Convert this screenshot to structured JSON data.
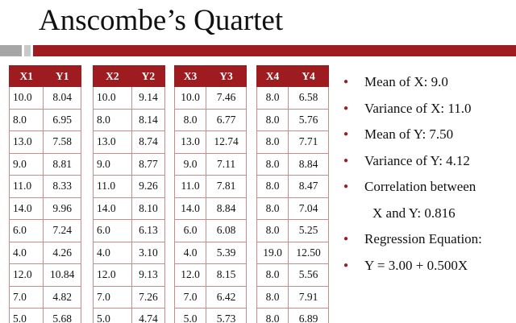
{
  "title": "Anscombe’s Quartet",
  "tables": [
    {
      "headers": [
        "X1",
        "Y1"
      ],
      "rows": [
        [
          "10.0",
          "8.04"
        ],
        [
          "8.0",
          "6.95"
        ],
        [
          "13.0",
          "7.58"
        ],
        [
          "9.0",
          "8.81"
        ],
        [
          "11.0",
          "8.33"
        ],
        [
          "14.0",
          "9.96"
        ],
        [
          "6.0",
          "7.24"
        ],
        [
          "4.0",
          "4.26"
        ],
        [
          "12.0",
          "10.84"
        ],
        [
          "7.0",
          "4.82"
        ],
        [
          "5.0",
          "5.68"
        ]
      ]
    },
    {
      "headers": [
        "X2",
        "Y2"
      ],
      "rows": [
        [
          "10.0",
          "9.14"
        ],
        [
          "8.0",
          "8.14"
        ],
        [
          "13.0",
          "8.74"
        ],
        [
          "9.0",
          "8.77"
        ],
        [
          "11.0",
          "9.26"
        ],
        [
          "14.0",
          "8.10"
        ],
        [
          "6.0",
          "6.13"
        ],
        [
          "4.0",
          "3.10"
        ],
        [
          "12.0",
          "9.13"
        ],
        [
          "7.0",
          "7.26"
        ],
        [
          "5.0",
          "4.74"
        ]
      ]
    },
    {
      "headers": [
        "X3",
        "Y3"
      ],
      "rows": [
        [
          "10.0",
          "7.46"
        ],
        [
          "8.0",
          "6.77"
        ],
        [
          "13.0",
          "12.74"
        ],
        [
          "9.0",
          "7.11"
        ],
        [
          "11.0",
          "7.81"
        ],
        [
          "14.0",
          "8.84"
        ],
        [
          "6.0",
          "6.08"
        ],
        [
          "4.0",
          "5.39"
        ],
        [
          "12.0",
          "8.15"
        ],
        [
          "7.0",
          "6.42"
        ],
        [
          "5.0",
          "5.73"
        ]
      ]
    },
    {
      "headers": [
        "X4",
        "Y4"
      ],
      "rows": [
        [
          "8.0",
          "6.58"
        ],
        [
          "8.0",
          "5.76"
        ],
        [
          "8.0",
          "7.71"
        ],
        [
          "8.0",
          "8.84"
        ],
        [
          "8.0",
          "8.47"
        ],
        [
          "8.0",
          "7.04"
        ],
        [
          "8.0",
          "5.25"
        ],
        [
          "19.0",
          "12.50"
        ],
        [
          "8.0",
          "5.56"
        ],
        [
          "8.0",
          "7.91"
        ],
        [
          "8.0",
          "6.89"
        ]
      ]
    }
  ],
  "stats": {
    "mean_x": "Mean of X: 9.0",
    "variance_x": "Variance of X: 11.0",
    "mean_y": "Mean of Y: 7.50",
    "variance_y": "Variance of Y: 4.12",
    "correlation_line1": "Correlation between",
    "correlation_line2": "X and Y: 0.816",
    "regression_label": "Regression Equation:",
    "regression_equation": "Y = 3.00 + 0.500X"
  },
  "colors": {
    "accent": "#9e1b20",
    "bar_grey": "#a6a6a6",
    "bar_light": "#c9c9c9"
  }
}
